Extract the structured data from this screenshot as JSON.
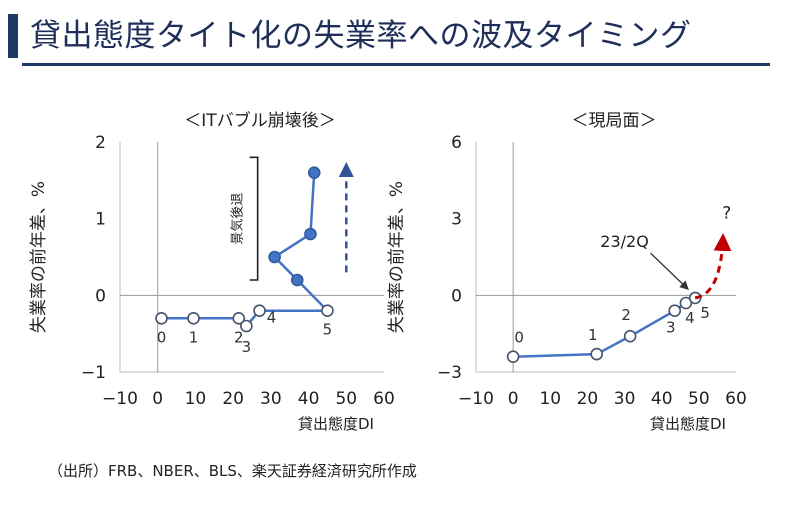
{
  "page": {
    "title": "貸出態度タイト化の失業率への波及タイミング",
    "source": "（出所）FRB、NBER、BLS、楽天証券経済研究所作成"
  },
  "colors": {
    "navy": "#1f3864",
    "series": "#4472c4",
    "arrow_blue": "#2f5597",
    "arrow_red": "#c00000",
    "axis": "#555555"
  },
  "chart_data": [
    {
      "type": "line",
      "title": "＜ITバブル崩壊後＞",
      "xlabel": "貸出態度DI",
      "ylabel": "失業率の前年差、%",
      "xlim": [
        -10,
        60
      ],
      "ylim": [
        -1,
        2
      ],
      "xticks": [
        "−10",
        "0",
        "10",
        "20",
        "30",
        "40",
        "50",
        "60"
      ],
      "yticks": [
        "−1",
        "0",
        "1",
        "2"
      ],
      "series": [
        {
          "points": [
            {
              "x": 1,
              "y": -0.3,
              "marker": "open",
              "label": "0"
            },
            {
              "x": 9.5,
              "y": -0.3,
              "marker": "open",
              "label": "1"
            },
            {
              "x": 21.5,
              "y": -0.3,
              "marker": "open",
              "label": "2"
            },
            {
              "x": 23.5,
              "y": -0.4,
              "marker": "open",
              "label": "3"
            },
            {
              "x": 27,
              "y": -0.2,
              "marker": "open",
              "label": "4"
            },
            {
              "x": 45,
              "y": -0.2,
              "marker": "open",
              "label": "5"
            },
            {
              "x": 37,
              "y": 0.2,
              "marker": "filled",
              "label": ""
            },
            {
              "x": 31,
              "y": 0.5,
              "marker": "filled",
              "label": ""
            },
            {
              "x": 40.5,
              "y": 0.8,
              "marker": "filled",
              "label": ""
            },
            {
              "x": 41.5,
              "y": 1.6,
              "marker": "filled",
              "label": ""
            }
          ]
        }
      ],
      "bracket_label": "景気後退",
      "arrow": {
        "color": "blue",
        "dashed": true,
        "from": {
          "x": 50,
          "y": 0.3
        },
        "to": {
          "x": 50,
          "y": 1.7
        }
      }
    },
    {
      "type": "line",
      "title": "＜現局面＞",
      "xlabel": "貸出態度DI",
      "ylabel": "失業率の前年差、%",
      "xlim": [
        -10,
        60
      ],
      "ylim": [
        -3,
        6
      ],
      "xticks": [
        "−10",
        "0",
        "10",
        "20",
        "30",
        "40",
        "50",
        "60"
      ],
      "yticks": [
        "−3",
        "0",
        "3",
        "6"
      ],
      "series": [
        {
          "points": [
            {
              "x": 0,
              "y": -2.4,
              "marker": "open",
              "label": "0"
            },
            {
              "x": 22.5,
              "y": -2.3,
              "marker": "open",
              "label": "1"
            },
            {
              "x": 31.5,
              "y": -1.6,
              "marker": "open",
              "label": "2"
            },
            {
              "x": 43.5,
              "y": -0.6,
              "marker": "open",
              "label": "3"
            },
            {
              "x": 46.5,
              "y": -0.3,
              "marker": "open",
              "label": "4"
            },
            {
              "x": 49,
              "y": -0.1,
              "marker": "open",
              "label": "5"
            }
          ]
        }
      ],
      "annotation": {
        "text": "23/2Q",
        "points_to": {
          "x": 47.5,
          "y": 0.1
        }
      },
      "question_mark": "?",
      "arrow": {
        "color": "red",
        "dashed": true,
        "from": {
          "x": 49,
          "y": -0.1
        },
        "to": {
          "x": 56.5,
          "y": 2.3
        }
      }
    }
  ]
}
